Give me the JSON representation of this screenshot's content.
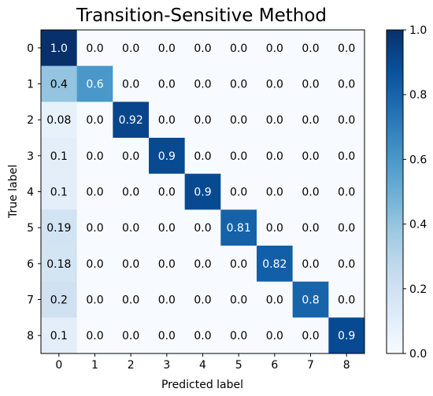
{
  "chart_data": {
    "type": "heatmap",
    "title": "Transition-Sensitive Method",
    "xlabel": "Predicted label",
    "ylabel": "True label",
    "x_ticks": [
      "0",
      "1",
      "2",
      "3",
      "4",
      "5",
      "6",
      "7",
      "8"
    ],
    "y_ticks": [
      "0",
      "1",
      "2",
      "3",
      "4",
      "5",
      "6",
      "7",
      "8"
    ],
    "cells": [
      [
        "1.0",
        "0.0",
        "0.0",
        "0.0",
        "0.0",
        "0.0",
        "0.0",
        "0.0",
        "0.0"
      ],
      [
        "0.4",
        "0.6",
        "0.0",
        "0.0",
        "0.0",
        "0.0",
        "0.0",
        "0.0",
        "0.0"
      ],
      [
        "0.08",
        "0.0",
        "0.92",
        "0.0",
        "0.0",
        "0.0",
        "0.0",
        "0.0",
        "0.0"
      ],
      [
        "0.1",
        "0.0",
        "0.0",
        "0.9",
        "0.0",
        "0.0",
        "0.0",
        "0.0",
        "0.0"
      ],
      [
        "0.1",
        "0.0",
        "0.0",
        "0.0",
        "0.9",
        "0.0",
        "0.0",
        "0.0",
        "0.0"
      ],
      [
        "0.19",
        "0.0",
        "0.0",
        "0.0",
        "0.0",
        "0.81",
        "0.0",
        "0.0",
        "0.0"
      ],
      [
        "0.18",
        "0.0",
        "0.0",
        "0.0",
        "0.0",
        "0.0",
        "0.82",
        "0.0",
        "0.0"
      ],
      [
        "0.2",
        "0.0",
        "0.0",
        "0.0",
        "0.0",
        "0.0",
        "0.0",
        "0.8",
        "0.0"
      ],
      [
        "0.1",
        "0.0",
        "0.0",
        "0.0",
        "0.0",
        "0.0",
        "0.0",
        "0.0",
        "0.9"
      ]
    ],
    "colorbar": {
      "range": [
        0.0,
        1.0
      ],
      "ticks": [
        "0.0",
        "0.2",
        "0.4",
        "0.6",
        "0.8",
        "1.0"
      ],
      "colormap": "Blues"
    }
  }
}
